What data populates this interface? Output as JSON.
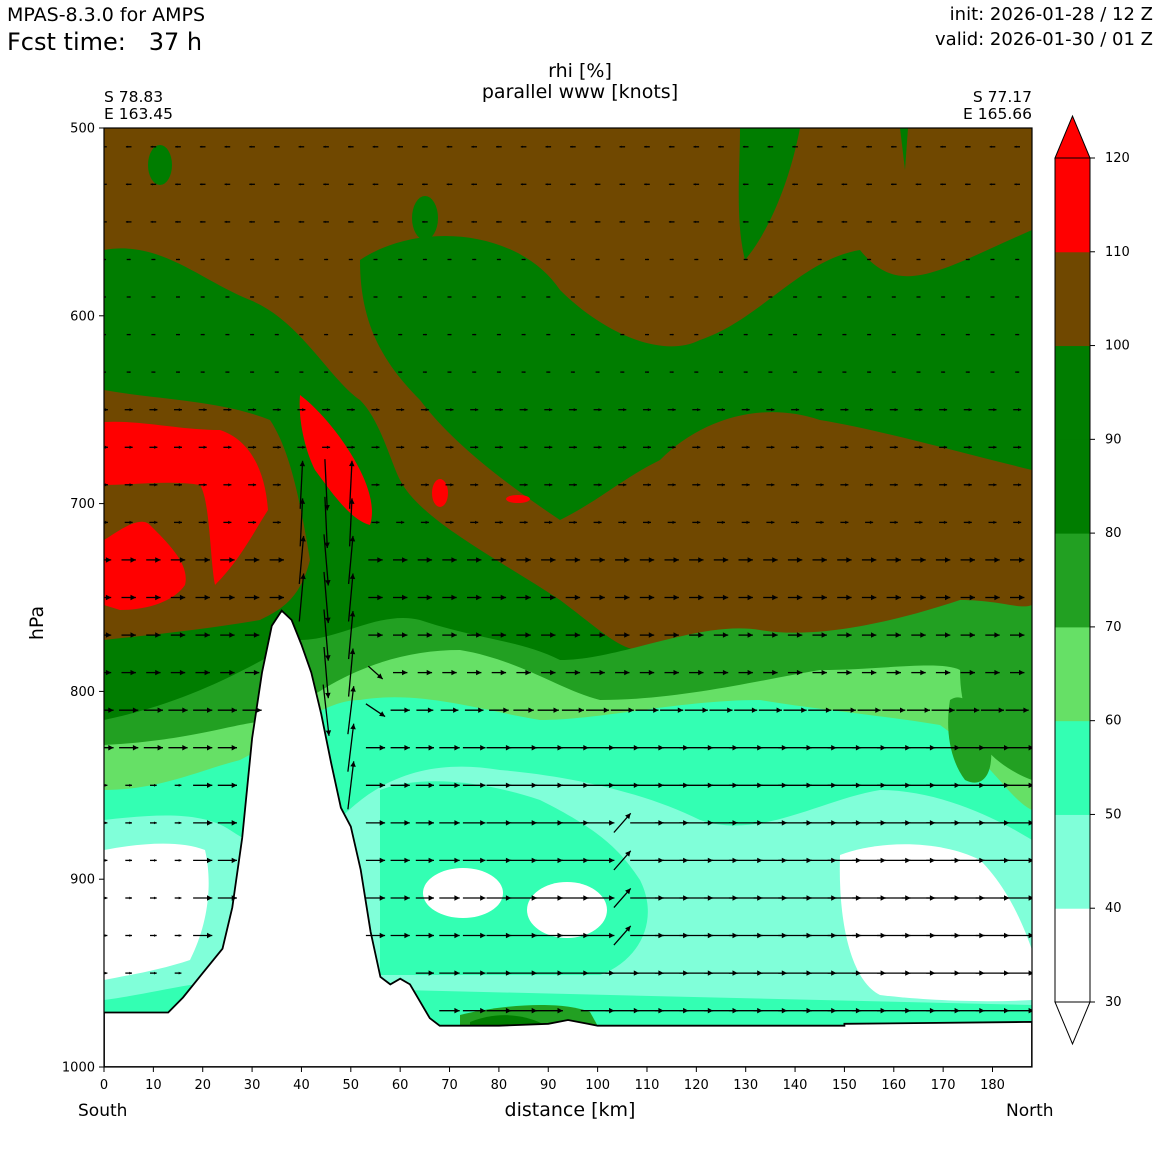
{
  "header": {
    "model": "MPAS-8.3.0 for AMPS",
    "fcst_label": "Fcst time:",
    "fcst_value": "37 h",
    "init": "init: 2026-01-28 / 12 Z",
    "valid": "valid: 2026-01-30 / 01 Z"
  },
  "chart_data": {
    "type": "heatmap",
    "title": "rhi [%]",
    "subtitle": "parallel www [knots]",
    "xlabel": "distance [km]",
    "ylabel": "hPa",
    "xlim": [
      0,
      188
    ],
    "ylim": [
      1000,
      500
    ],
    "x_ticks": [
      0,
      10,
      20,
      30,
      40,
      50,
      60,
      70,
      80,
      90,
      100,
      110,
      120,
      130,
      140,
      150,
      160,
      170,
      180
    ],
    "y_ticks": [
      500,
      600,
      700,
      800,
      900,
      1000
    ],
    "start_point": {
      "lat": "S 78.83",
      "lon": "E 163.45"
    },
    "end_point": {
      "lat": "S 77.17",
      "lon": "E 165.66"
    },
    "left_end_label": "South",
    "right_end_label": "North",
    "colorbar": {
      "levels": [
        30,
        40,
        50,
        60,
        70,
        80,
        90,
        100,
        110,
        120
      ],
      "colors": [
        "#ffffff",
        "#80ffd9",
        "#33ffb3",
        "#66e066",
        "#22a022",
        "#007d00",
        "#007d00",
        "#704800",
        "#ff0000"
      ],
      "extend": "both"
    },
    "terrain_surface": [
      [
        0,
        971
      ],
      [
        13,
        971
      ],
      [
        16,
        963
      ],
      [
        20,
        950
      ],
      [
        24,
        937
      ],
      [
        26,
        915
      ],
      [
        28,
        878
      ],
      [
        30,
        825
      ],
      [
        32,
        790
      ],
      [
        34,
        765
      ],
      [
        36,
        757
      ],
      [
        38,
        762
      ],
      [
        40,
        775
      ],
      [
        42,
        790
      ],
      [
        44,
        812
      ],
      [
        46,
        838
      ],
      [
        48,
        862
      ],
      [
        50,
        872
      ],
      [
        52,
        895
      ],
      [
        54,
        928
      ],
      [
        56,
        952
      ],
      [
        58,
        956
      ],
      [
        60,
        953
      ],
      [
        62,
        956
      ],
      [
        64,
        965
      ],
      [
        66,
        974
      ],
      [
        68,
        978
      ],
      [
        80,
        978
      ],
      [
        90,
        977
      ],
      [
        94,
        975
      ],
      [
        98,
        977
      ],
      [
        100,
        978
      ],
      [
        150,
        978
      ],
      [
        150,
        977
      ],
      [
        188,
        976
      ]
    ],
    "rh_regions": [
      {
        "level": "110-120",
        "area": "upper-left",
        "x": [
          0,
          34
        ],
        "p": [
          655,
          760
        ]
      },
      {
        "level": "110-120",
        "area": "lee-slope band",
        "x": [
          40,
          55
        ],
        "p": [
          650,
          715
        ]
      },
      {
        "level": "100-110",
        "area": "upper layer",
        "x": [
          0,
          188
        ],
        "p": [
          500,
          790
        ]
      },
      {
        "level": "80-100",
        "area": "mid layer",
        "x": [
          0,
          188
        ],
        "p": [
          560,
          840
        ]
      },
      {
        "level": "60-70",
        "area": "low layer band",
        "x": [
          0,
          188
        ],
        "p": [
          790,
          860
        ]
      },
      {
        "level": "50-60",
        "area": "boundary layer",
        "x": [
          0,
          188
        ],
        "p": [
          840,
          975
        ]
      },
      {
        "level": "40-50",
        "area": "near surface",
        "x": [
          0,
          188
        ],
        "p": [
          860,
          975
        ]
      },
      {
        "level": "<40",
        "area": "dry pockets",
        "x": [
          0,
          188
        ],
        "p": [
          875,
          970
        ]
      }
    ],
    "wind_arrows": {
      "levels_hPa": [
        510,
        530,
        550,
        570,
        590,
        610,
        630,
        650,
        670,
        690,
        710,
        730,
        750,
        770,
        790,
        810,
        830,
        850,
        870,
        890,
        910,
        930,
        950,
        970
      ],
      "x_spacing_km": 5,
      "pattern": "weak leftward aloft (above 560 hPa), rightward below 650 hPa, strengthening near 830-950 hPa north of 60 km, strong ascent/descent near 40-50 km"
    }
  }
}
